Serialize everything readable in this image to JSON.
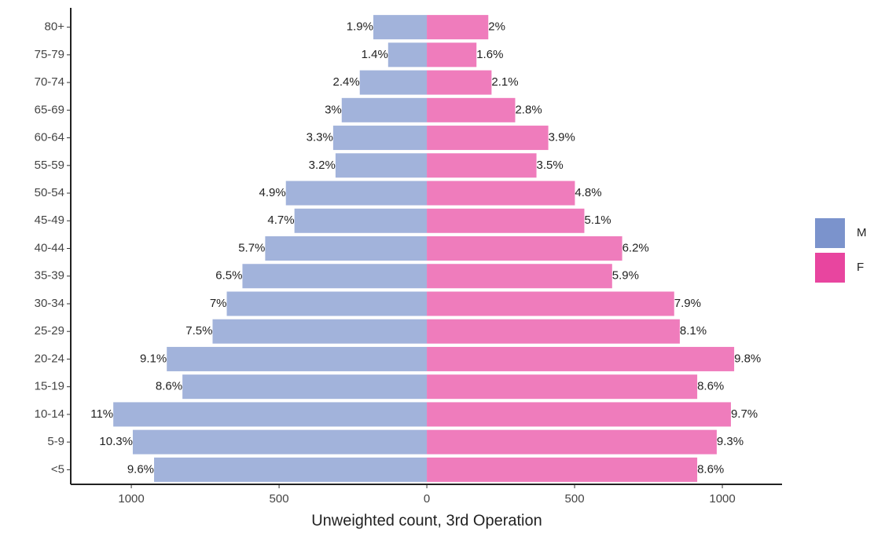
{
  "chart_data": {
    "type": "pyramid",
    "x_label": "Unweighted count, 3rd Operation",
    "categories": [
      "<5",
      "5-9",
      "10-14",
      "15-19",
      "20-24",
      "25-29",
      "30-34",
      "35-39",
      "40-44",
      "45-49",
      "50-54",
      "55-59",
      "60-64",
      "65-69",
      "70-74",
      "75-79",
      "80+"
    ],
    "series": [
      {
        "name": "M",
        "color": "#7b93cc",
        "values": [
          -923,
          -995,
          -1061,
          -827,
          -880,
          -725,
          -677,
          -624,
          -547,
          -448,
          -477,
          -309,
          -317,
          -288,
          -227,
          -131,
          -181
        ],
        "percent_labels": [
          "9.6%",
          "10.3%",
          "11%",
          "8.6%",
          "9.1%",
          "7.5%",
          "7%",
          "6.5%",
          "5.7%",
          "4.7%",
          "4.9%",
          "3.2%",
          "3.3%",
          "3%",
          "2.4%",
          "1.4%",
          "1.9%"
        ]
      },
      {
        "name": "F",
        "color": "#e8459f",
        "values": [
          915,
          981,
          1029,
          915,
          1040,
          856,
          837,
          627,
          661,
          533,
          501,
          371,
          411,
          299,
          219,
          168,
          208
        ],
        "percent_labels": [
          "8.6%",
          "9.3%",
          "9.7%",
          "8.6%",
          "9.8%",
          "8.1%",
          "7.9%",
          "5.9%",
          "6.2%",
          "5.1%",
          "4.8%",
          "3.5%",
          "3.9%",
          "2.8%",
          "2.1%",
          "1.6%",
          "2%"
        ]
      }
    ],
    "xlim": [
      -1205,
      1202
    ],
    "xticks": [
      {
        "value": -1000,
        "label": "1000"
      },
      {
        "value": -500,
        "label": "500"
      },
      0,
      500,
      1000
    ],
    "legend": "right"
  }
}
